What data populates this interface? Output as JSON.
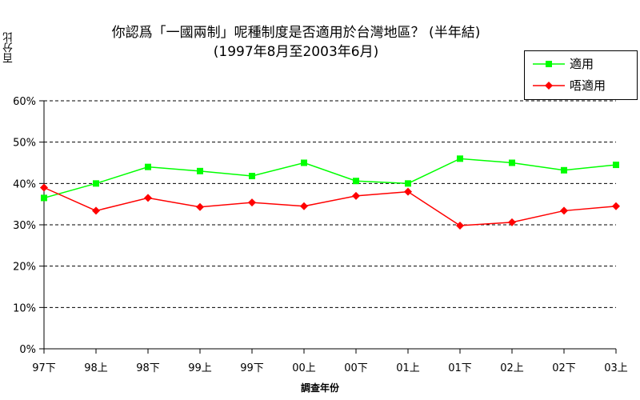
{
  "chart_data": {
    "type": "line",
    "title": "你認爲「一國兩制」呢種制度是否適用於台灣地區？ (半年結)",
    "subtitle": "(1997年8月至2003年6月)",
    "ylabel": "百分比",
    "xlabel": "調查年份",
    "categories": [
      "97下",
      "98上",
      "98下",
      "99上",
      "99下",
      "00上",
      "00下",
      "01上",
      "01下",
      "02上",
      "02下",
      "03上"
    ],
    "yticks": [
      "0%",
      "10%",
      "20%",
      "30%",
      "40%",
      "50%",
      "60%"
    ],
    "ylim": [
      0,
      60
    ],
    "grid": true,
    "legend_position": "top-right",
    "series": [
      {
        "name": "適用",
        "color": "#00ff00",
        "marker": "square",
        "values": [
          36.5,
          40.0,
          44.0,
          43.0,
          41.8,
          45.0,
          40.6,
          40.0,
          46.0,
          45.0,
          43.2,
          44.5
        ]
      },
      {
        "name": "唔適用",
        "color": "#ff0000",
        "marker": "diamond",
        "values": [
          39.0,
          33.4,
          36.5,
          34.3,
          35.4,
          34.5,
          37.0,
          38.0,
          29.8,
          30.6,
          33.4,
          34.5
        ]
      }
    ]
  }
}
